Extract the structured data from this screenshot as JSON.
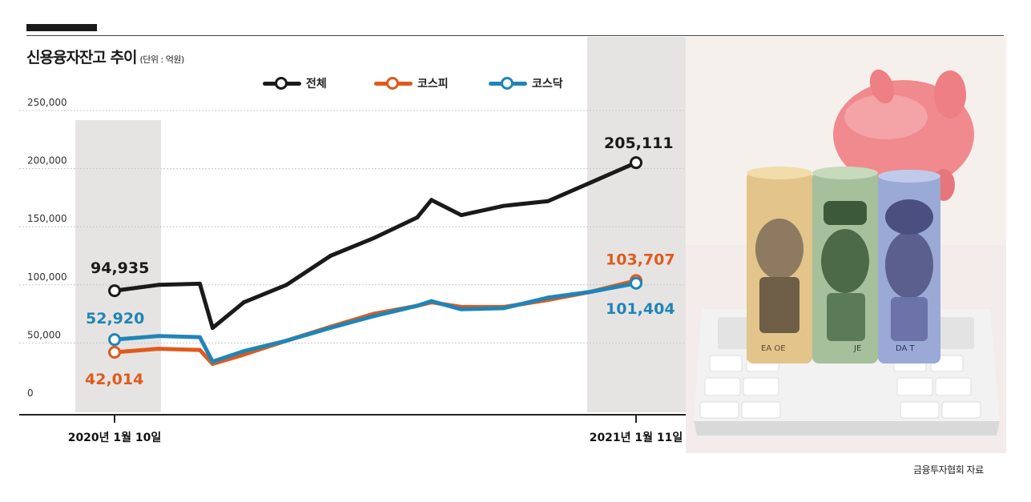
{
  "title": "신용융자잔고 추이",
  "unit": "(단위 : 억원)",
  "source": "금융투자협회 자료",
  "colors": {
    "total": "#1a1a1a",
    "kospi": "#e05a1c",
    "kosdaq": "#1f85b8",
    "grid": "#c8c8c8",
    "shade": "#e6e4e2"
  },
  "chart_data": {
    "type": "line",
    "ylim": [
      0,
      250000
    ],
    "y_ticks": [
      "0",
      "50,000",
      "100,000",
      "150,000",
      "200,000",
      "250,000"
    ],
    "x_labels": [
      "2020년 1월 10일",
      "2021년 1월 11일"
    ],
    "x": [
      "2020-01-10",
      "2020-02-10",
      "2020-03-10",
      "2020-03-19",
      "2020-04-10",
      "2020-05-10",
      "2020-06-10",
      "2020-07-10",
      "2020-08-10",
      "2020-08-20",
      "2020-09-10",
      "2020-10-10",
      "2020-11-10",
      "2020-12-10",
      "2021-01-11"
    ],
    "series": [
      {
        "name": "전체",
        "key": "total",
        "values": [
          94935,
          100000,
          101000,
          63000,
          85000,
          100000,
          125000,
          140000,
          158000,
          173000,
          160000,
          168000,
          172000,
          188000,
          205111
        ],
        "start_label": "94,935",
        "end_label": "205,111"
      },
      {
        "name": "코스피",
        "key": "kospi",
        "values": [
          42014,
          45000,
          44000,
          32000,
          40000,
          52000,
          64000,
          75000,
          82000,
          85000,
          81000,
          81000,
          87000,
          94000,
          103707
        ],
        "start_label": "42,014",
        "end_label": "103,707"
      },
      {
        "name": "코스닥",
        "key": "kosdaq",
        "values": [
          52920,
          56000,
          55000,
          34000,
          43000,
          52000,
          63000,
          73000,
          82000,
          86000,
          79000,
          80000,
          89000,
          94000,
          101404
        ],
        "start_label": "52,920",
        "end_label": "101,404"
      }
    ],
    "legend": [
      "전체",
      "코스피",
      "코스닥"
    ],
    "grid": true
  },
  "illustration": {
    "note_labels": [
      "EA OE",
      "JE",
      "DA T"
    ]
  }
}
